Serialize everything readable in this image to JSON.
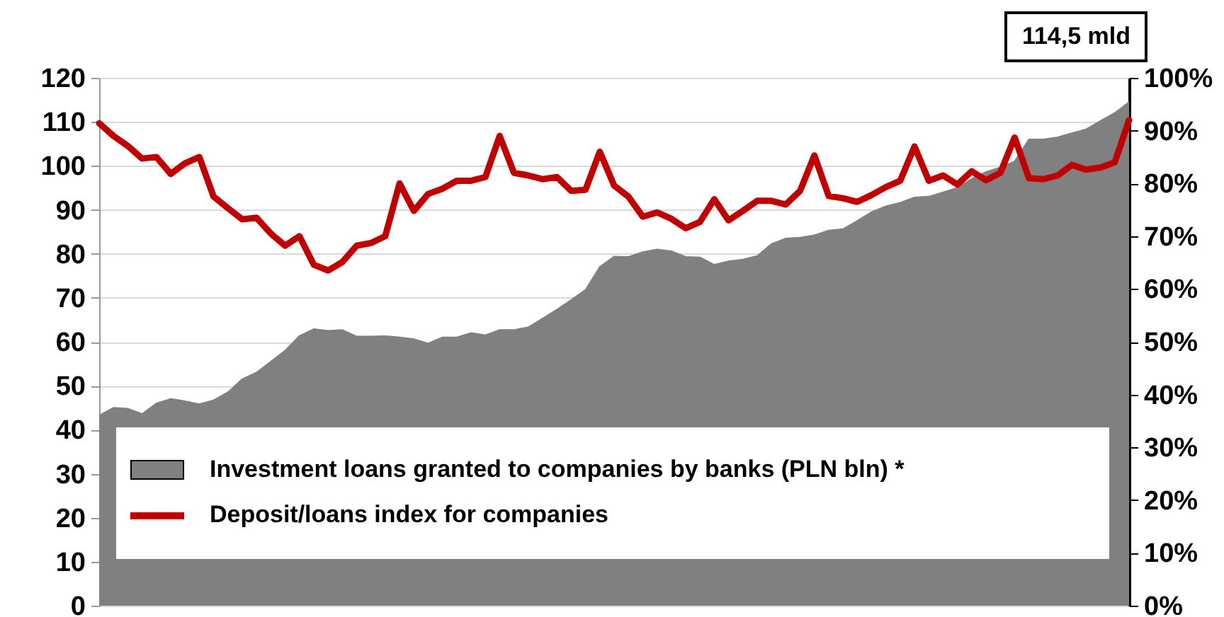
{
  "chart_data": {
    "type": "area",
    "annotations": [
      "114,5 mld"
    ],
    "categories": [
      null,
      null,
      null,
      null,
      null,
      null,
      null,
      null,
      null,
      null,
      null,
      null,
      null,
      null,
      null,
      null,
      null,
      null,
      null,
      null,
      null,
      null,
      null,
      null,
      null,
      null,
      null,
      null,
      null,
      null,
      null,
      null,
      null,
      null,
      null,
      null,
      null,
      null,
      null,
      null,
      null,
      null,
      null,
      null,
      null,
      null,
      null,
      null,
      null,
      null,
      null,
      null,
      null,
      null,
      null,
      null,
      null,
      null,
      null,
      null,
      null,
      null,
      null,
      null,
      null,
      null,
      null,
      null,
      null,
      null,
      null,
      null,
      null
    ],
    "series": [
      {
        "name": "Investment loans granted to companies by banks (PLN bln) *",
        "color": "#808080",
        "values": [
          43.2,
          45,
          44.8,
          43.6,
          46,
          47,
          46.5,
          45.8,
          46.7,
          48.5,
          51.5,
          53,
          55.5,
          58,
          61.3,
          62.9,
          62.5,
          62.7,
          61.2,
          61.2,
          61.3,
          61,
          60.6,
          59.6,
          61,
          61,
          62,
          61.5,
          62.7,
          62.7,
          63.3,
          65.3,
          67.3,
          69.5,
          71.8,
          77,
          79.4,
          79.3,
          80.4,
          81,
          80.6,
          79.3,
          79.2,
          77.5,
          78.3,
          78.7,
          79.5,
          82.2,
          83.5,
          83.7,
          84.2,
          85.3,
          85.6,
          87.5,
          89.5,
          90.8,
          91.6,
          92.8,
          93,
          94,
          95,
          97,
          98.6,
          99.6,
          101,
          106,
          106,
          106.5,
          107.4,
          108.3,
          110.2,
          112,
          114.5
        ]
      },
      {
        "name": "Deposit/loans index for companies",
        "type": "line",
        "axis": "y2",
        "color": "#c00000",
        "values": [
          91.4,
          89,
          87.1,
          84.7,
          85,
          81.8,
          83.8,
          85,
          77.5,
          75.3,
          73.2,
          73.5,
          70.5,
          68.2,
          70,
          64.6,
          63.5,
          65.1,
          68.2,
          68.7,
          70,
          80,
          74.8,
          78,
          79,
          80.5,
          80.5,
          81.2,
          89,
          82,
          81.5,
          80.8,
          81.2,
          78.6,
          78.8,
          86,
          79.6,
          77.5,
          73.7,
          74.5,
          73.3,
          71.5,
          72.7,
          77,
          73,
          74.8,
          76.7,
          76.7,
          76,
          78.6,
          85.3,
          77.6,
          77.2,
          76.5,
          77.8,
          79.3,
          80.5,
          87,
          80.5,
          81.5,
          79.8,
          82.3,
          80.6,
          82,
          88.7,
          81,
          80.8,
          81.5,
          83.5,
          82.6,
          83,
          84,
          92
        ]
      }
    ],
    "ylim": [
      0,
      120
    ],
    "yticks": [
      0,
      10,
      20,
      30,
      40,
      50,
      60,
      70,
      80,
      90,
      100,
      110,
      120
    ],
    "y2lim": [
      0,
      100
    ],
    "y2ticks": [
      {
        "value": 0,
        "label": "0%"
      },
      {
        "value": 10,
        "label": "10%"
      },
      {
        "value": 20,
        "label": "20%"
      },
      {
        "value": 30,
        "label": "30%"
      },
      {
        "value": 40,
        "label": "40%"
      },
      {
        "value": 50,
        "label": "50%"
      },
      {
        "value": 60,
        "label": "60%"
      },
      {
        "value": 70,
        "label": "70%"
      },
      {
        "value": 80,
        "label": "80%"
      },
      {
        "value": 90,
        "label": "90%"
      },
      {
        "value": 100,
        "label": "100%"
      }
    ],
    "grid": "y",
    "legend": "bottom",
    "marker": "none",
    "line_style": "solid"
  }
}
